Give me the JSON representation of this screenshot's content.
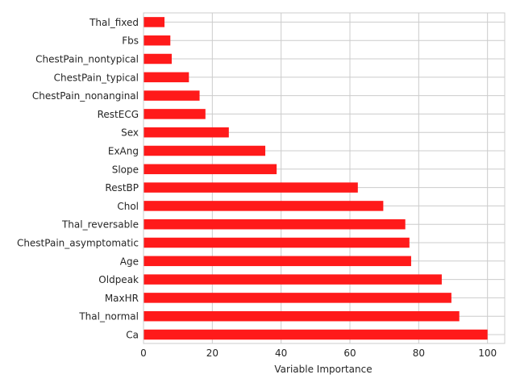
{
  "chart_data": {
    "type": "bar",
    "orientation": "horizontal",
    "categories": [
      "Ca",
      "Thal_normal",
      "MaxHR",
      "Oldpeak",
      "Age",
      "ChestPain_asymptomatic",
      "Thal_reversable",
      "Chol",
      "RestBP",
      "Slope",
      "ExAng",
      "Sex",
      "RestECG",
      "ChestPain_nonanginal",
      "ChestPain_typical",
      "ChestPain_nontypical",
      "Fbs",
      "Thal_fixed"
    ],
    "values": [
      100,
      91.8,
      89.5,
      86.7,
      77.8,
      77.3,
      76.1,
      69.7,
      62.3,
      38.7,
      35.4,
      24.8,
      18.0,
      16.3,
      13.2,
      8.2,
      7.8,
      6.1
    ],
    "title": "",
    "xlabel": "Variable Importance",
    "ylabel": "",
    "xlim": [
      0,
      105
    ],
    "xticks": [
      "0",
      "20",
      "40",
      "60",
      "80",
      "100"
    ],
    "grid": true,
    "bar_color": "#ff1a1a"
  }
}
